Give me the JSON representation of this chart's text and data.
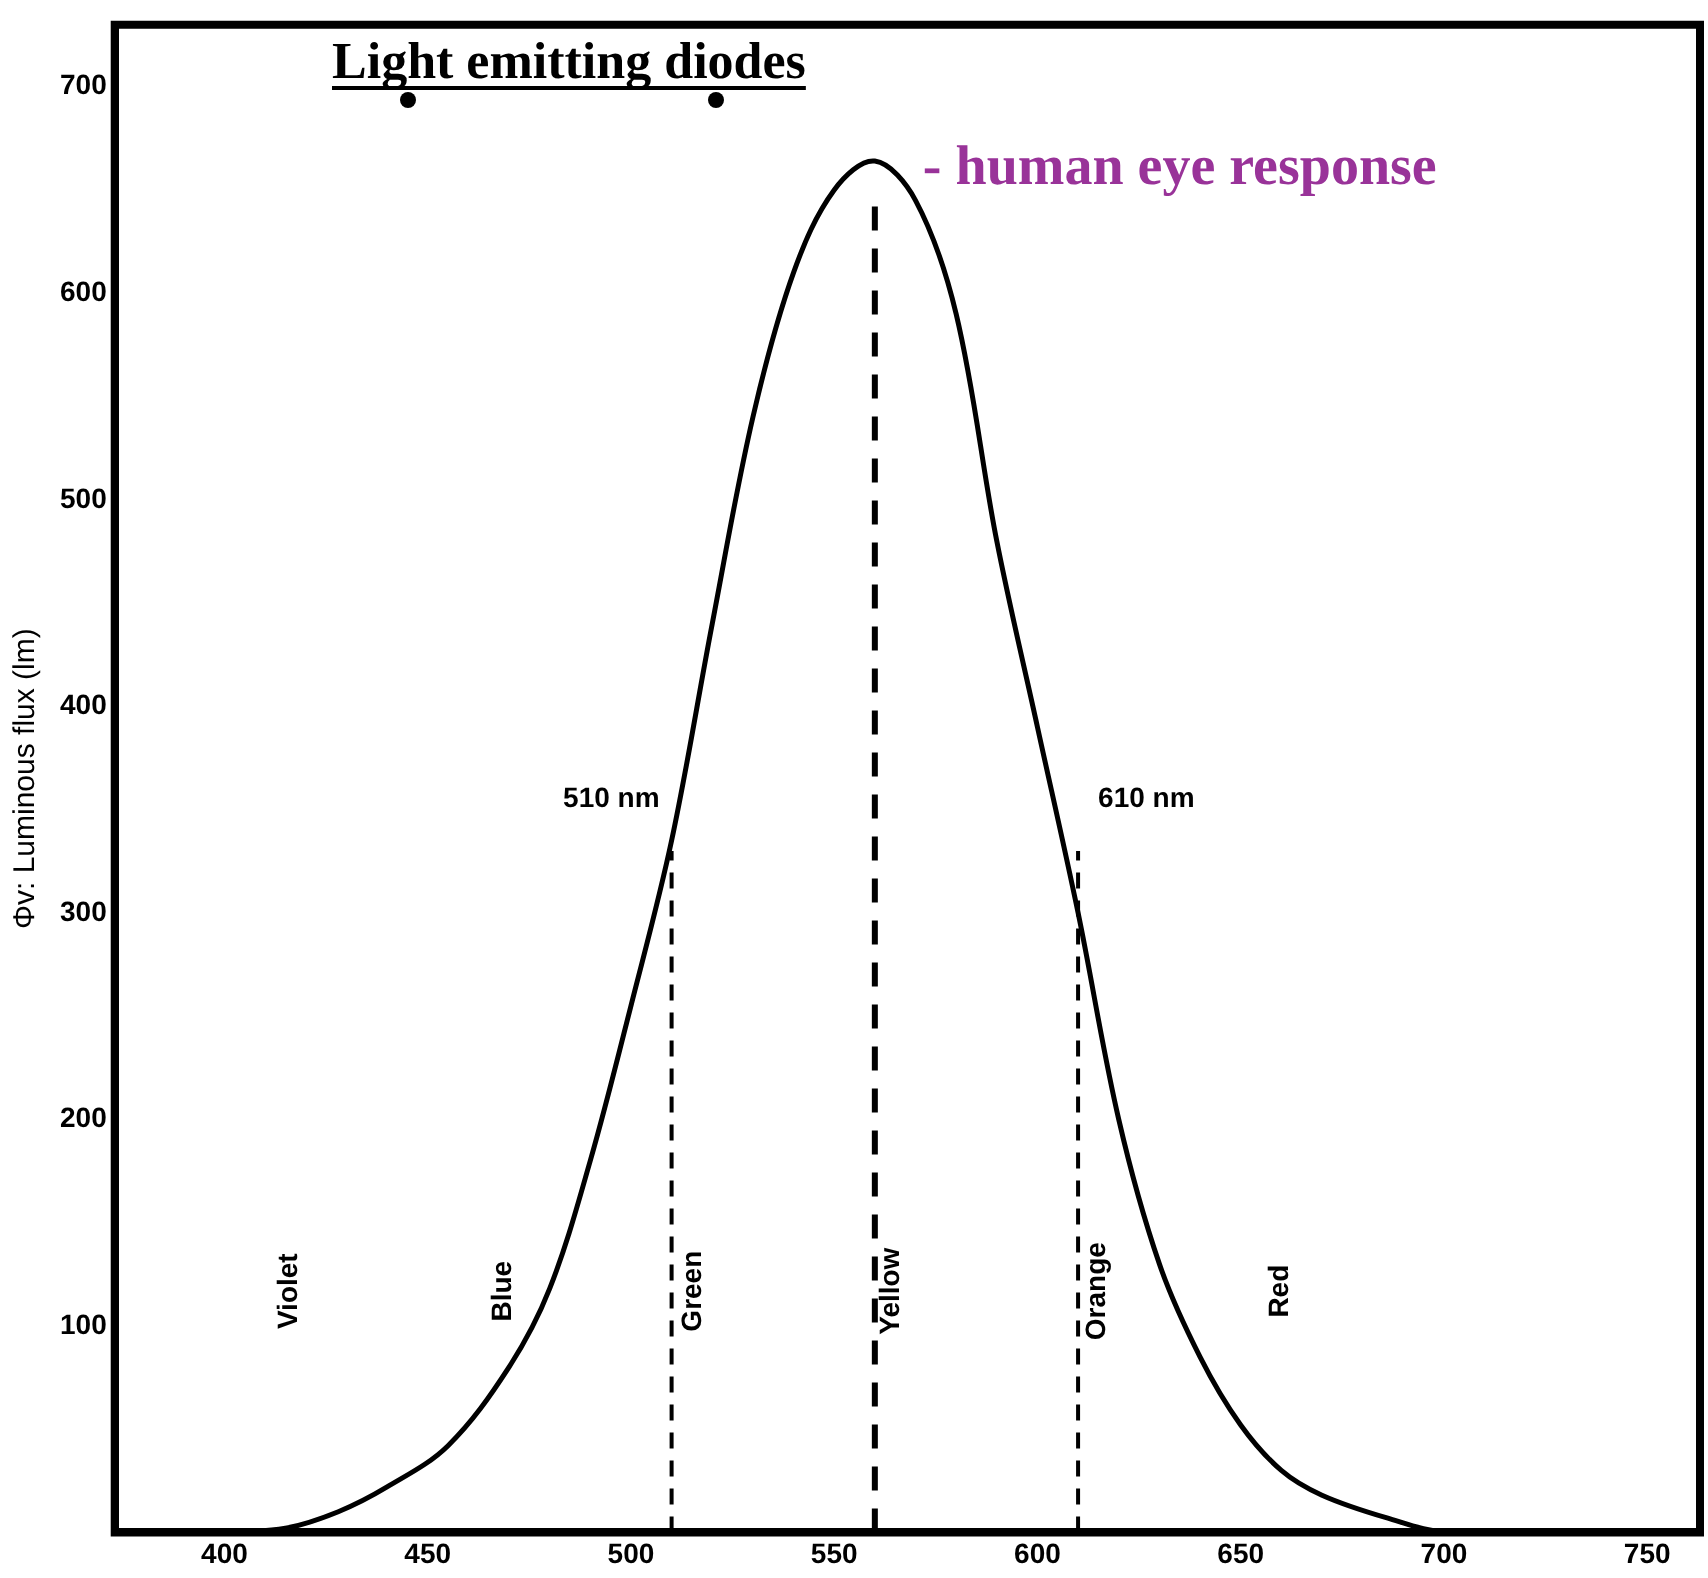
{
  "chart_data": {
    "type": "line",
    "title": "Light emitting diodes",
    "ylabel": "Φv: Luminous flux (lm)",
    "xlim": [
      373,
      763
    ],
    "xticks": [
      400,
      450,
      500,
      550,
      600,
      650,
      700,
      750
    ],
    "ylim": [
      0,
      730
    ],
    "yticks": [
      100,
      200,
      300,
      400,
      500,
      600,
      700
    ],
    "grid": false,
    "legend": false,
    "marker": "none",
    "line_style": "solid",
    "series": [
      {
        "name": "- human eye response",
        "color": "#000000",
        "x": [
          373,
          400,
          415,
          428,
          440,
          455,
          470,
          480,
          490,
          500,
          510,
          520,
          530,
          540,
          550,
          560,
          570,
          580,
          590,
          600,
          610,
          620,
          630,
          640,
          650,
          660,
          670,
          686,
          701,
          763
        ],
        "values": [
          0,
          0,
          2,
          10,
          22,
          42,
          80,
          118,
          180,
          255,
          335,
          440,
          540,
          610,
          650,
          664,
          645,
          590,
          480,
          390,
          300,
          200,
          130,
          85,
          52,
          30,
          18,
          7,
          0,
          0
        ]
      }
    ],
    "ref_lines": [
      {
        "axis": "x",
        "value": 510,
        "label": "510 nm",
        "line_style": "dashed"
      },
      {
        "axis": "x",
        "value": 560,
        "label": null,
        "line_style": "dashed"
      },
      {
        "axis": "x",
        "value": 610,
        "label": "610 nm",
        "line_style": "dashed"
      }
    ],
    "annotations": [
      "Violet",
      "Blue",
      "Green",
      "Yellow",
      "Orange",
      "Red"
    ]
  }
}
